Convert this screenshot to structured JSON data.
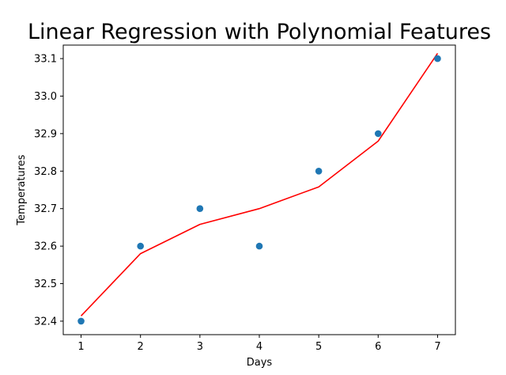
{
  "chart_data": {
    "type": "scatter",
    "title": "Linear Regression with Polynomial Features",
    "xlabel": "Days",
    "ylabel": "Temperatures",
    "xlim": [
      0.7,
      7.3
    ],
    "ylim": [
      32.364,
      33.136
    ],
    "xticks": [
      1,
      2,
      3,
      4,
      5,
      6,
      7
    ],
    "yticks": [
      32.4,
      32.5,
      32.6,
      32.7,
      32.8,
      32.9,
      33.0,
      33.1
    ],
    "grid": false,
    "series": [
      {
        "type": "scatter",
        "color": "#1f77b4",
        "x": [
          1,
          2,
          3,
          4,
          5,
          6,
          7
        ],
        "y": [
          32.4,
          32.6,
          32.7,
          32.6,
          32.8,
          32.9,
          33.1
        ]
      },
      {
        "type": "line",
        "color": "#ff0000",
        "x": [
          1,
          2,
          3,
          4,
          5,
          6,
          7
        ],
        "y": [
          32.414,
          32.58,
          32.658,
          32.7,
          32.758,
          32.88,
          33.114
        ]
      }
    ]
  }
}
